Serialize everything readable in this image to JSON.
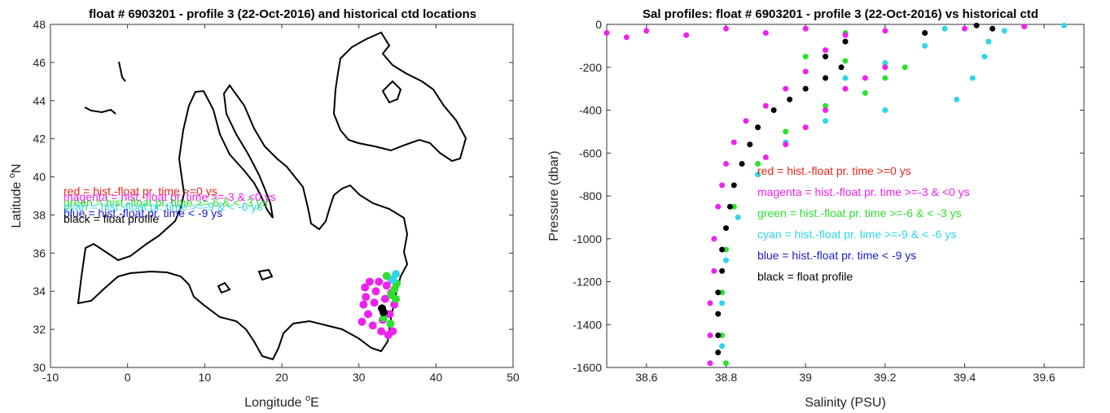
{
  "chart_data": [
    {
      "type": "scatter",
      "title": "float # 6903201 - profile 3 (22-Oct-2016) and historical ctd locations",
      "xlabel_main": "Longitude ",
      "xlabel_sup": "o",
      "xlabel_end": "E",
      "ylabel_main": "Latitude ",
      "ylabel_sup": "o",
      "ylabel_end": "N",
      "xlim": [
        -10,
        50
      ],
      "ylim": [
        30,
        48
      ],
      "xticks": [
        "-10",
        "0",
        "10",
        "20",
        "30",
        "40",
        "50"
      ],
      "yticks": [
        "30",
        "32",
        "34",
        "36",
        "38",
        "40",
        "42",
        "44",
        "46",
        "48"
      ],
      "legend": [
        {
          "label": "red = hist.-float pr. time >=0 ys",
          "color": "#e8261c"
        },
        {
          "label": "magenta = hist.-float pr. time >=-3 & <0 ys",
          "color": "#ee22ee"
        },
        {
          "label": "green = hist.-float pr. time >=-6 & < -3 ys",
          "color": "#2ee02e"
        },
        {
          "label": "cyan = hist.-float pr. time >=-9 & < -6 ys",
          "color": "#2fd6e8"
        },
        {
          "label": "blue = hist.-float pr. time < -9 ys",
          "color": "#1c1ccc"
        },
        {
          "label": "black = float profile",
          "color": "#000000"
        }
      ],
      "series": [
        {
          "color": "#ee22ee",
          "points": [
            [
              30.8,
              34.2
            ],
            [
              31.4,
              34.5
            ],
            [
              32.2,
              34.0
            ],
            [
              33.6,
              34.3
            ],
            [
              34.2,
              33.9
            ],
            [
              30.4,
              32.4
            ],
            [
              31.2,
              32.8
            ],
            [
              32.0,
              33.4
            ],
            [
              33.1,
              32.5
            ],
            [
              34.0,
              32.8
            ],
            [
              34.4,
              31.9
            ],
            [
              30.6,
              33.3
            ],
            [
              32.6,
              34.5
            ],
            [
              34.6,
              33.3
            ],
            [
              31.8,
              32.2
            ],
            [
              32.9,
              31.9
            ],
            [
              33.8,
              31.7
            ],
            [
              30.9,
              33.7
            ],
            [
              33.4,
              33.6
            ],
            [
              34.3,
              34.6
            ]
          ]
        },
        {
          "color": "#2ee02e",
          "points": [
            [
              34.2,
              33.8
            ],
            [
              34.6,
              34.1
            ],
            [
              34.9,
              34.4
            ],
            [
              33.2,
              32.6
            ],
            [
              34.1,
              32.3
            ],
            [
              34.8,
              33.6
            ],
            [
              33.6,
              34.8
            ]
          ]
        },
        {
          "color": "#2fd6e8",
          "points": [
            [
              34.8,
              34.9
            ],
            [
              34.4,
              34.6
            ]
          ]
        },
        {
          "color": "#000000",
          "points": [
            [
              33.0,
              33.1
            ],
            [
              33.2,
              32.9
            ]
          ]
        }
      ]
    },
    {
      "type": "scatter",
      "title": "Sal profiles: float # 6903201 - profile 3 (22-Oct-2016) vs historical ctd",
      "xlabel": "Salinity (PSU)",
      "ylabel": "Pressure (dbar)",
      "xlim": [
        38.5,
        39.7
      ],
      "ylim": [
        -1600,
        0
      ],
      "xticks": [
        "38.6",
        "38.8",
        "39",
        "39.2",
        "39.4",
        "39.6"
      ],
      "yticks": [
        "0",
        "-200",
        "-400",
        "-600",
        "-800",
        "-1000",
        "-1200",
        "-1400",
        "-1600"
      ],
      "legend": [
        {
          "label": "red = hist.-float pr. time >=0 ys",
          "color": "#e8261c"
        },
        {
          "label": "magenta = hist.-float pr. time >=-3 & <0 ys",
          "color": "#ee22ee"
        },
        {
          "label": "green = hist.-float pr. time >=-6 & < -3 ys",
          "color": "#2ee02e"
        },
        {
          "label": "cyan = hist.-float pr. time >=-9 & < -6 ys",
          "color": "#2fd6e8"
        },
        {
          "label": "blue = hist.-float pr. time < -9 ys",
          "color": "#1c1ccc"
        },
        {
          "label": "black = float profile",
          "color": "#000000"
        }
      ],
      "series": [
        {
          "color": "#2fd6e8",
          "points": [
            [
              39.65,
              -5
            ],
            [
              39.5,
              -30
            ],
            [
              39.46,
              -80
            ],
            [
              39.45,
              -150
            ],
            [
              39.42,
              -250
            ],
            [
              39.38,
              -350
            ],
            [
              39.2,
              -400
            ],
            [
              39.05,
              -450
            ],
            [
              38.95,
              -550
            ],
            [
              38.88,
              -700
            ],
            [
              38.83,
              -900
            ],
            [
              38.8,
              -1100
            ],
            [
              38.79,
              -1300
            ],
            [
              38.79,
              -1500
            ],
            [
              39.35,
              -20
            ],
            [
              39.3,
              -100
            ],
            [
              39.2,
              -180
            ],
            [
              39.1,
              -250
            ]
          ]
        },
        {
          "color": "#2ee02e",
          "points": [
            [
              39.1,
              -40
            ],
            [
              39.0,
              -150
            ],
            [
              39.1,
              -170
            ],
            [
              39.2,
              -250
            ],
            [
              39.25,
              -200
            ],
            [
              39.15,
              -320
            ],
            [
              39.05,
              -380
            ],
            [
              38.95,
              -500
            ],
            [
              38.88,
              -650
            ],
            [
              38.82,
              -850
            ],
            [
              38.8,
              -1050
            ],
            [
              38.79,
              -1250
            ],
            [
              38.79,
              -1450
            ],
            [
              38.8,
              -1580
            ]
          ]
        },
        {
          "color": "#ee22ee",
          "points": [
            [
              38.5,
              -40
            ],
            [
              38.6,
              -30
            ],
            [
              38.7,
              -50
            ],
            [
              38.8,
              -20
            ],
            [
              38.9,
              -40
            ],
            [
              39.0,
              -20
            ],
            [
              39.1,
              -50
            ],
            [
              39.2,
              -30
            ],
            [
              39.3,
              -40
            ],
            [
              39.4,
              -20
            ],
            [
              39.55,
              -10
            ],
            [
              38.55,
              -60
            ],
            [
              39.05,
              -120
            ],
            [
              39.0,
              -220
            ],
            [
              38.95,
              -300
            ],
            [
              38.9,
              -380
            ],
            [
              38.85,
              -450
            ],
            [
              38.82,
              -550
            ],
            [
              38.8,
              -650
            ],
            [
              38.79,
              -750
            ],
            [
              38.78,
              -850
            ],
            [
              38.77,
              -1000
            ],
            [
              38.77,
              -1150
            ],
            [
              38.76,
              -1300
            ],
            [
              38.76,
              -1450
            ],
            [
              38.76,
              -1580
            ],
            [
              39.1,
              -300
            ],
            [
              39.05,
              -400
            ],
            [
              39.0,
              -480
            ],
            [
              38.95,
              -560
            ],
            [
              38.9,
              -620
            ],
            [
              39.15,
              -250
            ],
            [
              39.2,
              -200
            ]
          ]
        },
        {
          "color": "#000000",
          "points": [
            [
              39.43,
              -5
            ],
            [
              39.47,
              -20
            ],
            [
              39.3,
              -40
            ],
            [
              39.1,
              -80
            ],
            [
              39.05,
              -150
            ],
            [
              39.09,
              -200
            ],
            [
              39.05,
              -250
            ],
            [
              39.0,
              -300
            ],
            [
              38.96,
              -350
            ],
            [
              38.92,
              -400
            ],
            [
              38.88,
              -480
            ],
            [
              38.86,
              -560
            ],
            [
              38.84,
              -650
            ],
            [
              38.82,
              -750
            ],
            [
              38.81,
              -850
            ],
            [
              38.8,
              -950
            ],
            [
              38.79,
              -1050
            ],
            [
              38.79,
              -1150
            ],
            [
              38.78,
              -1250
            ],
            [
              38.78,
              -1350
            ],
            [
              38.78,
              -1450
            ],
            [
              38.78,
              -1530
            ]
          ]
        }
      ]
    }
  ]
}
